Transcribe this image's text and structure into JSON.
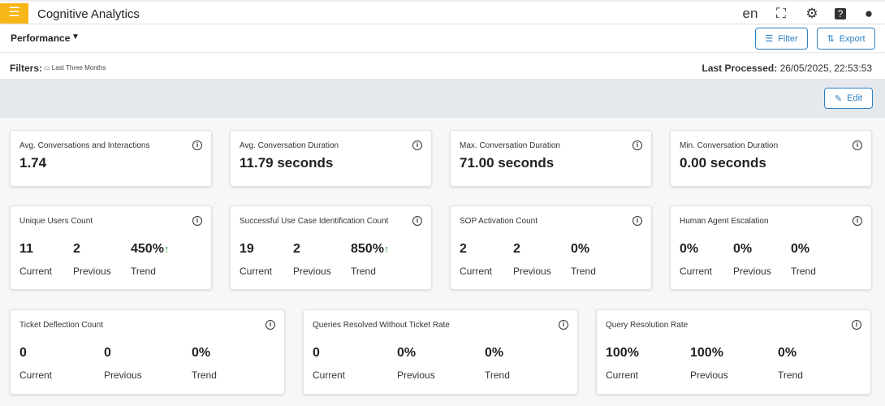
{
  "header": {
    "title": "Cognitive Analytics",
    "language": "en",
    "icons": [
      "menu-icon",
      "fullscreen-icon",
      "settings-icon",
      "help-icon",
      "account-icon"
    ]
  },
  "subheader": {
    "view": "Performance",
    "filter_label": "Filter",
    "export_label": "Export"
  },
  "filters": {
    "label": "Filters:",
    "chip": "Last Three Months",
    "last_processed_label": "Last Processed:",
    "last_processed_value": "26/05/2025, 22:53:53"
  },
  "edit_label": "Edit",
  "labels": {
    "current": "Current",
    "previous": "Previous",
    "trend": "Trend"
  },
  "colors": {
    "accent": "#f8b617",
    "primary": "#2b7fc3",
    "trend_up": "#2e9d3e"
  },
  "summary": [
    {
      "title": "Avg. Conversations and Interactions",
      "value": "1.74"
    },
    {
      "title": "Avg. Conversation Duration",
      "value": "11.79 seconds"
    },
    {
      "title": "Max. Conversation Duration",
      "value": "71.00 seconds"
    },
    {
      "title": "Min. Conversation Duration",
      "value": "0.00 seconds"
    }
  ],
  "metrics": [
    {
      "title": "Unique Users Count",
      "current": "11",
      "previous": "2",
      "trend": "450%",
      "trend_up": "↑"
    },
    {
      "title": "Successful Use Case Identification Count",
      "current": "19",
      "previous": "2",
      "trend": "850%",
      "trend_up": "↑"
    },
    {
      "title": "SOP Activation Count",
      "current": "2",
      "previous": "2",
      "trend": "0%"
    },
    {
      "title": "Human Agent Escalation",
      "current": "0%",
      "previous": "0%",
      "trend": "0%"
    },
    {
      "title": "Ticket Deflection Count",
      "current": "0",
      "previous": "0",
      "trend": "0%"
    },
    {
      "title": "Queries Resolved Without Ticket Rate",
      "current": "0",
      "previous": "0%",
      "trend": "0%"
    },
    {
      "title": "Query Resolution Rate",
      "current": "100%",
      "previous": "100%",
      "trend": "0%"
    }
  ]
}
